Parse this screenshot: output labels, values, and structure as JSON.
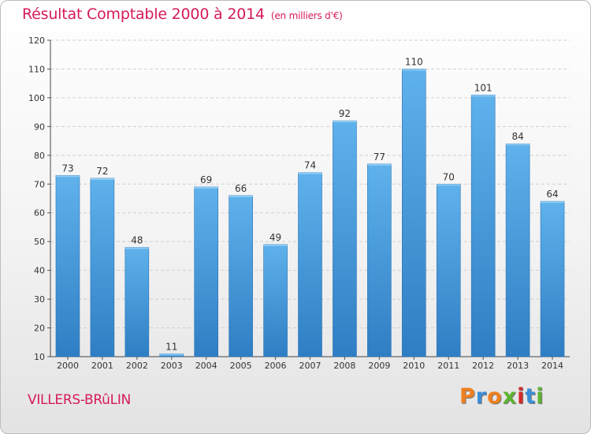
{
  "header": {
    "title": "Résultat Comptable 2000 à 2014",
    "subtitle": "(en milliers d'€)"
  },
  "footer": {
    "town": "VILLERS-BRûLIN",
    "brand": "Proxiti"
  },
  "colors": {
    "accent": "#d61a5b",
    "bar_top": "#5fb2ec",
    "bar_bottom": "#2f7ec4",
    "brand_letters": [
      "#f07f1f",
      "#3a8dd6",
      "#f07f1f",
      "#5db32f",
      "#d62828",
      "#3a8dd6",
      "#5db32f"
    ]
  },
  "chart_data": {
    "type": "bar",
    "title": "Résultat Comptable 2000 à 2014",
    "unit": "en milliers d'€",
    "categories": [
      "2000",
      "2001",
      "2002",
      "2003",
      "2004",
      "2005",
      "2006",
      "2007",
      "2008",
      "2009",
      "2010",
      "2011",
      "2012",
      "2013",
      "2014"
    ],
    "values": [
      73,
      72,
      48,
      11,
      69,
      66,
      49,
      74,
      92,
      77,
      110,
      70,
      101,
      84,
      64
    ],
    "yticks": [
      10,
      20,
      30,
      40,
      50,
      60,
      70,
      80,
      90,
      100,
      110,
      120
    ],
    "ylim": [
      10,
      120
    ],
    "grid": true,
    "xlabel": "",
    "ylabel": ""
  }
}
